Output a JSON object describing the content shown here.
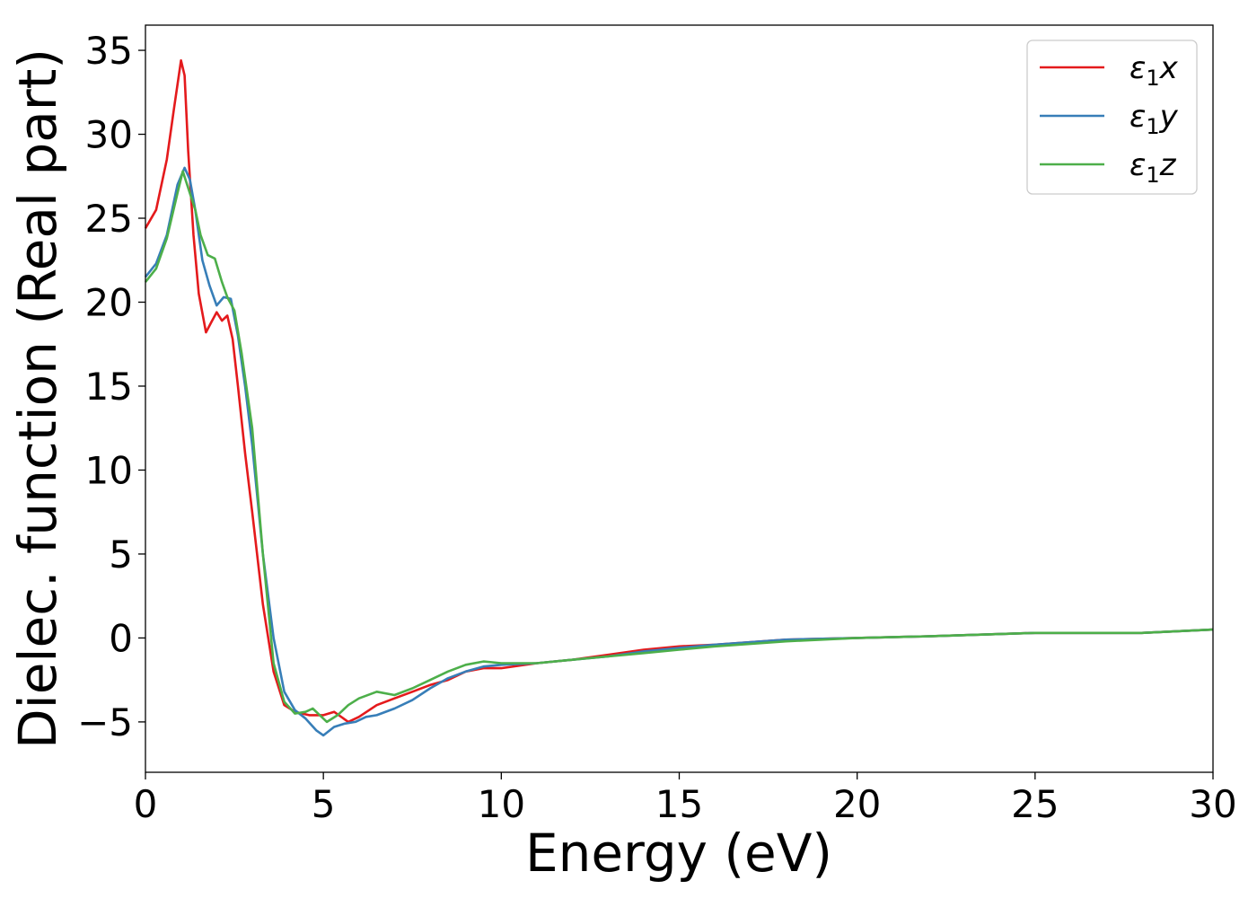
{
  "chart_data": {
    "type": "line",
    "title": "",
    "xlabel": "Energy (eV)",
    "ylabel": "Dielec. function (Real part)",
    "xlim": [
      0,
      30
    ],
    "ylim": [
      -8,
      36.5
    ],
    "xticks": [
      "0",
      "5",
      "10",
      "15",
      "20",
      "25",
      "30"
    ],
    "yticks": [
      "−5",
      "0",
      "5",
      "10",
      "15",
      "20",
      "25",
      "30",
      "35"
    ],
    "grid": false,
    "legend_position": "top-right",
    "series": [
      {
        "name": "ε₁x",
        "legend_base": "ε",
        "legend_sub": "1",
        "legend_var": "x",
        "color": "#e41a1c",
        "x": [
          0,
          0.3,
          0.6,
          0.8,
          1.0,
          1.1,
          1.2,
          1.35,
          1.5,
          1.7,
          1.85,
          2.0,
          2.15,
          2.3,
          2.45,
          2.6,
          2.8,
          3.0,
          3.3,
          3.6,
          3.9,
          4.2,
          4.6,
          5.0,
          5.3,
          5.7,
          6.0,
          6.5,
          7.0,
          7.5,
          8.0,
          8.5,
          9.0,
          9.5,
          10.0,
          11.0,
          12.0,
          13.0,
          14.0,
          15.0,
          16.0,
          18.0,
          20.0,
          22.0,
          25.0,
          28.0,
          30.0
        ],
        "y": [
          24.4,
          25.5,
          28.5,
          31.5,
          34.4,
          33.5,
          29.0,
          24.0,
          20.5,
          18.2,
          18.8,
          19.4,
          18.9,
          19.2,
          17.8,
          15.0,
          11.0,
          7.5,
          2.0,
          -2.0,
          -4.0,
          -4.4,
          -4.6,
          -4.6,
          -4.4,
          -5.0,
          -4.7,
          -4.0,
          -3.6,
          -3.2,
          -2.8,
          -2.5,
          -2.0,
          -1.8,
          -1.8,
          -1.5,
          -1.3,
          -1.0,
          -0.7,
          -0.5,
          -0.4,
          -0.1,
          0.0,
          0.1,
          0.3,
          0.3,
          0.5
        ]
      },
      {
        "name": "ε₁y",
        "legend_base": "ε",
        "legend_sub": "1",
        "legend_var": "y",
        "color": "#377eb8",
        "x": [
          0,
          0.3,
          0.6,
          0.9,
          1.1,
          1.25,
          1.4,
          1.6,
          1.8,
          2.0,
          2.2,
          2.4,
          2.6,
          2.8,
          3.0,
          3.3,
          3.6,
          3.9,
          4.2,
          4.5,
          4.8,
          5.0,
          5.3,
          5.6,
          5.9,
          6.2,
          6.5,
          7.0,
          7.5,
          8.0,
          8.5,
          9.0,
          9.5,
          10.0,
          11.0,
          12.0,
          13.0,
          14.0,
          15.0,
          16.0,
          18.0,
          20.0,
          22.0,
          25.0,
          28.0,
          30.0
        ],
        "y": [
          21.5,
          22.3,
          24.0,
          27.0,
          28.0,
          27.3,
          25.5,
          22.5,
          21.0,
          19.8,
          20.3,
          20.2,
          18.0,
          15.0,
          11.5,
          5.0,
          0.0,
          -3.2,
          -4.3,
          -4.8,
          -5.5,
          -5.8,
          -5.3,
          -5.1,
          -5.0,
          -4.7,
          -4.6,
          -4.2,
          -3.7,
          -3.0,
          -2.4,
          -2.0,
          -1.7,
          -1.6,
          -1.5,
          -1.3,
          -1.1,
          -0.8,
          -0.6,
          -0.4,
          -0.1,
          0.0,
          0.1,
          0.3,
          0.3,
          0.5
        ]
      },
      {
        "name": "ε₁z",
        "legend_base": "ε",
        "legend_sub": "1",
        "legend_var": "z",
        "color": "#4daf4a",
        "x": [
          0,
          0.3,
          0.6,
          0.9,
          1.05,
          1.2,
          1.4,
          1.55,
          1.75,
          1.95,
          2.15,
          2.3,
          2.5,
          2.7,
          3.0,
          3.3,
          3.6,
          3.9,
          4.2,
          4.5,
          4.7,
          4.85,
          5.1,
          5.4,
          5.7,
          6.0,
          6.5,
          7.0,
          7.5,
          8.0,
          8.5,
          9.0,
          9.5,
          10.0,
          11.0,
          12.0,
          13.0,
          14.0,
          15.0,
          16.0,
          18.0,
          20.0,
          22.0,
          25.0,
          28.0,
          30.0
        ],
        "y": [
          21.2,
          22.0,
          23.8,
          26.5,
          27.8,
          26.8,
          25.5,
          24.0,
          22.8,
          22.6,
          21.2,
          20.3,
          19.5,
          17.0,
          12.5,
          5.0,
          -1.5,
          -3.8,
          -4.5,
          -4.4,
          -4.2,
          -4.5,
          -5.0,
          -4.6,
          -4.0,
          -3.6,
          -3.2,
          -3.4,
          -3.0,
          -2.5,
          -2.0,
          -1.6,
          -1.4,
          -1.5,
          -1.5,
          -1.3,
          -1.1,
          -0.9,
          -0.7,
          -0.5,
          -0.2,
          0.0,
          0.1,
          0.3,
          0.3,
          0.5
        ]
      }
    ]
  }
}
